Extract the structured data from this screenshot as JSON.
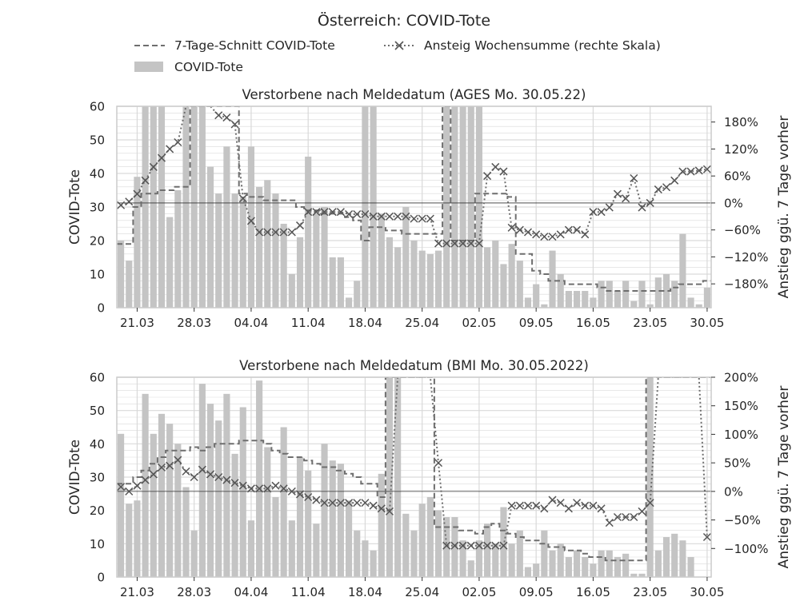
{
  "figure": {
    "title": "Österreich: COVID-Tote",
    "legend": [
      {
        "key": "avg",
        "label": "7-Tage-Schnitt COVID-Tote",
        "style": "dashed"
      },
      {
        "key": "bars",
        "label": "COVID-Tote",
        "style": "bar"
      },
      {
        "key": "change",
        "label": "Ansteig Wochensumme (rechte Skala)",
        "style": "dotted-x"
      }
    ],
    "colors": {
      "bars": "#c4c4c4",
      "line": "#6e6e6e",
      "grid": "#d9d9d9",
      "frame": "#cccccc"
    }
  },
  "chart_data": [
    {
      "type": "bar",
      "title": "Verstorbene nach Meldedatum (AGES Mo. 30.05.22)",
      "ylabel": "COVID-Tote",
      "ylabel_right": "Anstieg ggü. 7 Tage vorher",
      "ylim": [
        0,
        60
      ],
      "y2lim": [
        -233,
        215
      ],
      "yticks": [
        0,
        10,
        20,
        30,
        40,
        50,
        60
      ],
      "y2ticks": [
        {
          "v": 180,
          "label": "180%"
        },
        {
          "v": 120,
          "label": "120%"
        },
        {
          "v": 60,
          "label": "60%"
        },
        {
          "v": 0,
          "label": "0%"
        },
        {
          "v": -60,
          "label": "−60%"
        },
        {
          "v": -120,
          "label": "−120%"
        },
        {
          "v": -180,
          "label": "−180%"
        }
      ],
      "xticks": [
        {
          "i": 2,
          "label": "21.03"
        },
        {
          "i": 9,
          "label": "28.03"
        },
        {
          "i": 16,
          "label": "04.04"
        },
        {
          "i": 23,
          "label": "11.04"
        },
        {
          "i": 30,
          "label": "18.04"
        },
        {
          "i": 37,
          "label": "25.04"
        },
        {
          "i": 44,
          "label": "02.05"
        },
        {
          "i": 51,
          "label": "09.05"
        },
        {
          "i": 58,
          "label": "16.05"
        },
        {
          "i": 65,
          "label": "23.05"
        },
        {
          "i": 72,
          "label": "30.05"
        }
      ],
      "grid": true,
      "series": [
        {
          "key": "bars",
          "values": [
            20,
            14,
            39,
            60,
            60,
            60,
            27,
            35,
            60,
            60,
            60,
            42,
            34,
            48,
            34,
            33,
            48,
            36,
            38,
            34,
            25,
            10,
            21,
            45,
            28,
            30,
            15,
            15,
            3,
            8,
            60,
            60,
            28,
            21,
            18,
            30,
            20,
            17,
            16,
            17,
            60,
            60,
            60,
            60,
            60,
            18,
            20,
            13,
            19,
            14,
            3,
            7,
            1,
            17,
            10,
            5,
            5,
            5,
            3,
            8,
            8,
            5,
            8,
            2,
            8,
            1,
            9,
            10,
            8,
            22,
            3,
            1,
            6
          ]
        },
        {
          "key": "avg",
          "values": [
            19,
            19,
            30,
            34,
            34,
            35,
            35,
            36,
            36,
            60,
            60,
            60,
            60,
            60,
            60,
            34,
            33,
            33,
            32,
            32,
            32,
            32,
            30,
            29,
            29,
            28,
            28,
            28,
            27,
            26,
            20,
            24,
            24,
            23,
            23,
            22,
            22,
            22,
            22,
            22,
            60,
            20,
            20,
            20,
            34,
            34,
            34,
            34,
            33,
            16,
            16,
            11,
            10,
            8,
            8,
            7,
            7,
            7,
            7,
            6,
            5,
            5,
            5,
            5,
            5,
            5,
            5,
            5,
            6,
            7,
            7,
            7,
            8
          ]
        },
        {
          "key": "change",
          "values": [
            -5,
            3,
            20,
            50,
            80,
            100,
            120,
            135,
            215,
            215,
            215,
            215,
            195,
            190,
            175,
            10,
            -40,
            -65,
            -65,
            -65,
            -65,
            -65,
            -50,
            -20,
            -20,
            -20,
            -20,
            -20,
            -25,
            -25,
            -25,
            -30,
            -30,
            -30,
            -30,
            -30,
            -35,
            -35,
            -35,
            -90,
            -90,
            -90,
            -90,
            -90,
            -90,
            60,
            80,
            70,
            -55,
            -60,
            -65,
            -70,
            -75,
            -75,
            -70,
            -60,
            -60,
            -70,
            -20,
            -20,
            -10,
            20,
            10,
            55,
            -10,
            0,
            30,
            35,
            50,
            70,
            70,
            72,
            75
          ]
        }
      ]
    },
    {
      "type": "bar",
      "title": "Verstorbene nach Meldedatum (BMI Mo. 30.05.2022)",
      "ylabel": "COVID-Tote",
      "ylabel_right": "Anstieg ggü. 7 Tage vorher",
      "ylim": [
        0,
        60
      ],
      "y2lim": [
        -150,
        200
      ],
      "yticks": [
        0,
        10,
        20,
        30,
        40,
        50,
        60
      ],
      "y2ticks": [
        {
          "v": 200,
          "label": "200%"
        },
        {
          "v": 150,
          "label": "150%"
        },
        {
          "v": 100,
          "label": "100%"
        },
        {
          "v": 50,
          "label": "50%"
        },
        {
          "v": 0,
          "label": "0%"
        },
        {
          "v": -50,
          "label": "−50%"
        },
        {
          "v": -100,
          "label": "−100%"
        }
      ],
      "xticks": [
        {
          "i": 2,
          "label": "21.03"
        },
        {
          "i": 9,
          "label": "28.03"
        },
        {
          "i": 16,
          "label": "04.04"
        },
        {
          "i": 23,
          "label": "11.04"
        },
        {
          "i": 30,
          "label": "18.04"
        },
        {
          "i": 37,
          "label": "25.04"
        },
        {
          "i": 44,
          "label": "02.05"
        },
        {
          "i": 51,
          "label": "09.05"
        },
        {
          "i": 58,
          "label": "16.05"
        },
        {
          "i": 65,
          "label": "23.05"
        },
        {
          "i": 72,
          "label": "30.05"
        }
      ],
      "grid": true,
      "series": [
        {
          "key": "bars",
          "values": [
            43,
            22,
            23,
            55,
            43,
            49,
            46,
            40,
            27,
            14,
            58,
            52,
            47,
            55,
            37,
            51,
            17,
            59,
            39,
            24,
            45,
            17,
            36,
            32,
            16,
            40,
            35,
            34,
            23,
            14,
            11,
            8,
            31,
            60,
            60,
            19,
            14,
            22,
            24,
            20,
            18,
            18,
            11,
            5,
            11,
            16,
            10,
            21,
            10,
            14,
            3,
            4,
            14,
            8,
            10,
            6,
            8,
            6,
            4,
            8,
            8,
            6,
            7,
            1,
            1,
            60,
            8,
            12,
            13,
            11,
            6,
            0,
            0
          ]
        },
        {
          "key": "avg",
          "values": [
            28,
            28,
            30,
            32,
            34,
            36,
            38,
            38,
            38,
            39,
            38,
            39,
            40,
            40,
            40,
            41,
            41,
            41,
            40,
            38,
            37,
            36,
            36,
            35,
            34,
            33,
            33,
            32,
            31,
            30,
            28,
            28,
            24,
            200,
            200,
            200,
            200,
            200,
            200,
            15,
            15,
            15,
            14,
            14,
            13,
            15,
            16,
            14,
            13,
            12,
            11,
            11,
            10,
            9,
            9,
            8,
            8,
            7,
            6,
            6,
            5,
            5,
            5,
            5,
            5,
            102,
            102,
            103,
            105,
            107,
            107,
            106,
            104
          ]
        },
        {
          "key": "change",
          "values": [
            8,
            0,
            10,
            20,
            30,
            42,
            45,
            55,
            35,
            25,
            38,
            30,
            25,
            20,
            15,
            10,
            5,
            5,
            5,
            10,
            5,
            0,
            -5,
            -10,
            -15,
            -20,
            -20,
            -20,
            -20,
            -20,
            -20,
            -25,
            -30,
            -35,
            200,
            200,
            200,
            200,
            200,
            50,
            -95,
            -95,
            -95,
            -95,
            -95,
            -95,
            -95,
            -95,
            -25,
            -25,
            -25,
            -25,
            -30,
            -15,
            -20,
            -30,
            -20,
            -25,
            -25,
            -30,
            -55,
            -45,
            -45,
            -45,
            -35,
            -20,
            200,
            200,
            200,
            200,
            200,
            200,
            -80
          ]
        }
      ]
    }
  ]
}
